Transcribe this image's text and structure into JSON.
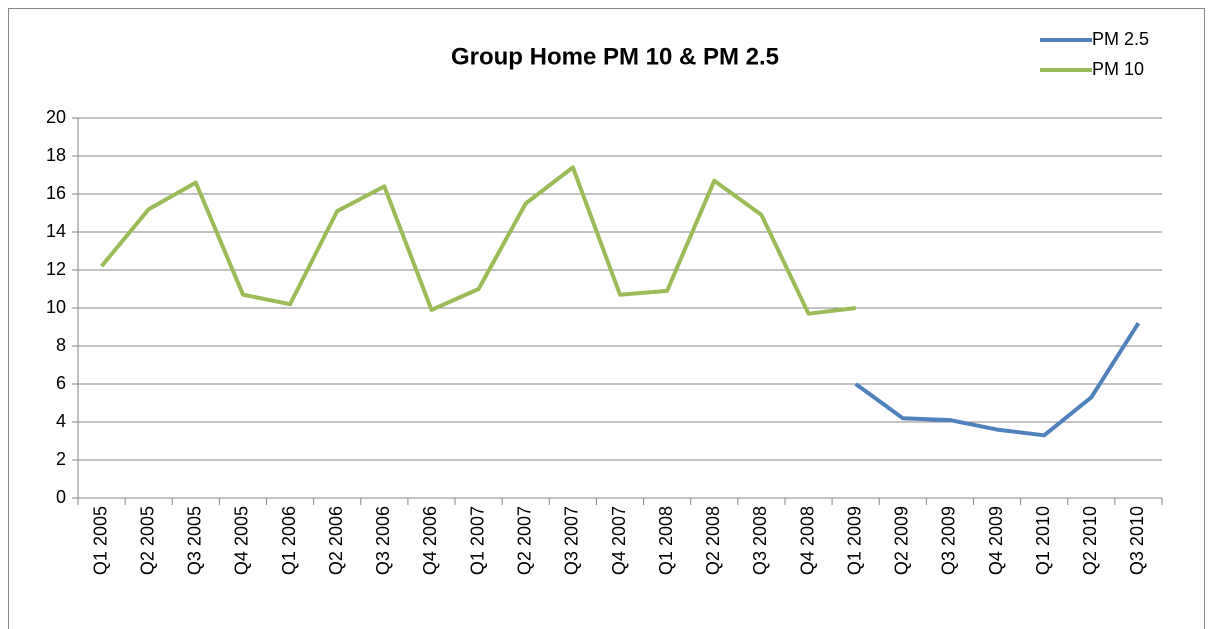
{
  "chart_data": {
    "type": "line",
    "title": "Group Home PM 10 & PM 2.5",
    "categories": [
      "Q1 2005",
      "Q2 2005",
      "Q3 2005",
      "Q4 2005",
      "Q1 2006",
      "Q2 2006",
      "Q3 2006",
      "Q4 2006",
      "Q1 2007",
      "Q2 2007",
      "Q3 2007",
      "Q4 2007",
      "Q1 2008",
      "Q2 2008",
      "Q3 2008",
      "Q4 2008",
      "Q1 2009",
      "Q2 2009",
      "Q3 2009",
      "Q4 2009",
      "Q1 2010",
      "Q2 2010",
      "Q3 2010"
    ],
    "series": [
      {
        "name": "PM 2.5",
        "color": "#4f81bd",
        "values": [
          null,
          null,
          null,
          null,
          null,
          null,
          null,
          null,
          null,
          null,
          null,
          null,
          null,
          null,
          null,
          null,
          6.0,
          4.2,
          4.1,
          3.6,
          3.3,
          5.3,
          9.2
        ]
      },
      {
        "name": "PM 10",
        "color": "#9bbb59",
        "values": [
          12.2,
          15.2,
          16.6,
          10.7,
          10.2,
          15.1,
          16.4,
          9.9,
          11.0,
          15.5,
          17.4,
          10.7,
          10.9,
          16.7,
          14.9,
          9.7,
          10.0,
          null,
          null,
          null,
          null,
          null,
          null
        ]
      }
    ],
    "ylim": [
      0,
      20
    ],
    "yticks": [
      0,
      2,
      4,
      6,
      8,
      10,
      12,
      14,
      16,
      18,
      20
    ],
    "grid": true,
    "legend": "top-right"
  }
}
